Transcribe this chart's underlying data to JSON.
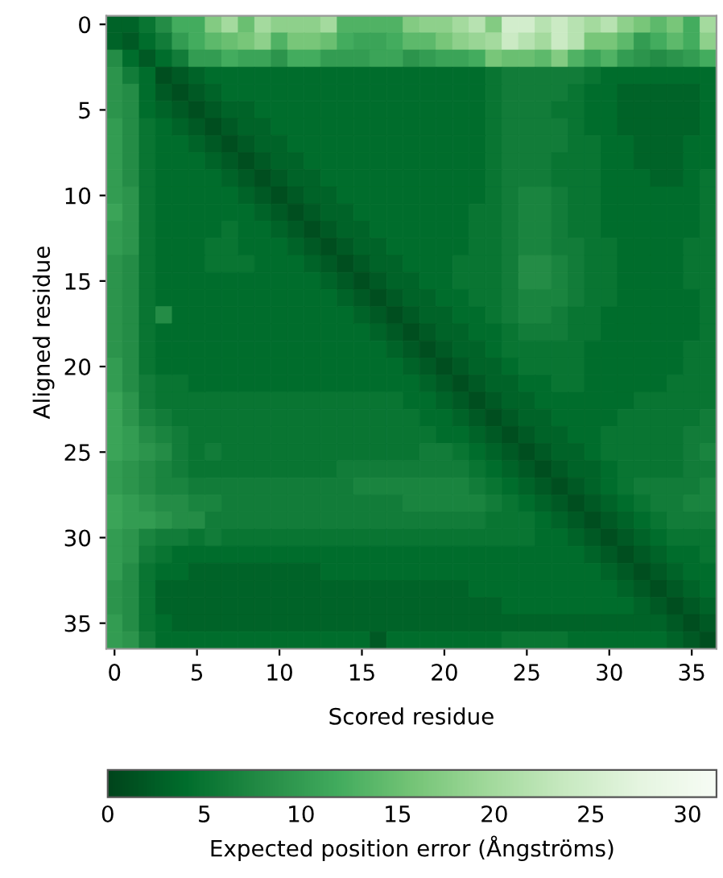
{
  "chart_data": {
    "type": "heatmap",
    "xlabel": "Scored residue",
    "ylabel": "Aligned residue",
    "clabel": "Expected position error (Ångströms)",
    "clim": [
      0,
      31.5
    ],
    "cticks": [
      0,
      5,
      10,
      15,
      20,
      25,
      30
    ],
    "categories": [
      "0",
      null,
      null,
      null,
      null,
      "5",
      null,
      null,
      null,
      null,
      "10",
      null,
      null,
      null,
      null,
      "15",
      null,
      null,
      null,
      null,
      "20",
      null,
      null,
      null,
      null,
      "25",
      null,
      null,
      null,
      null,
      "30",
      null,
      null,
      null,
      null,
      "35",
      null
    ],
    "y_categories": [
      "0",
      null,
      null,
      null,
      null,
      "5",
      null,
      null,
      null,
      null,
      "10",
      null,
      null,
      null,
      null,
      "15",
      null,
      null,
      null,
      null,
      "20",
      null,
      null,
      null,
      null,
      "25",
      null,
      null,
      null,
      null,
      "30",
      null,
      null,
      null,
      null,
      "35",
      null
    ],
    "cells": [
      [
        3,
        3,
        5,
        8,
        12,
        12,
        17,
        20,
        15,
        20,
        18,
        18,
        18,
        20,
        13,
        13,
        13,
        13,
        17,
        18,
        18,
        20,
        22,
        17,
        25,
        25,
        22,
        24,
        22,
        20,
        22,
        18,
        16,
        14,
        16,
        12,
        20
      ],
      [
        3,
        2,
        4,
        6,
        10,
        12,
        14,
        15,
        16,
        18,
        13,
        16,
        16,
        15,
        12,
        11,
        11,
        12,
        14,
        14,
        16,
        18,
        19,
        20,
        24,
        22,
        20,
        24,
        22,
        16,
        16,
        14,
        10,
        12,
        14,
        12,
        18
      ],
      [
        8,
        4,
        2,
        4,
        6,
        10,
        10,
        12,
        11,
        11,
        9,
        12,
        12,
        10,
        10,
        10,
        11,
        11,
        9,
        10,
        11,
        11,
        12,
        16,
        15,
        15,
        14,
        17,
        13,
        11,
        13,
        10,
        9,
        8,
        9,
        10,
        12
      ],
      [
        9,
        6,
        4,
        1,
        2,
        3,
        4,
        4,
        4,
        4,
        4,
        4,
        4,
        4,
        4,
        4,
        4,
        4,
        4,
        4,
        4,
        4,
        4,
        5,
        6,
        6,
        6,
        6,
        6,
        5,
        4,
        4,
        4,
        4,
        4,
        4,
        4
      ],
      [
        9,
        8,
        4,
        2,
        1,
        2,
        3,
        4,
        4,
        4,
        4,
        4,
        4,
        4,
        4,
        4,
        4,
        4,
        4,
        4,
        4,
        4,
        4,
        5,
        6,
        6,
        6,
        6,
        5,
        4,
        4,
        3,
        3,
        3,
        3,
        3,
        4
      ],
      [
        9,
        8,
        4,
        3,
        2,
        1,
        2,
        3,
        3,
        4,
        4,
        4,
        4,
        4,
        4,
        4,
        4,
        4,
        4,
        4,
        4,
        4,
        4,
        5,
        6,
        6,
        6,
        5,
        5,
        4,
        4,
        3,
        3,
        3,
        3,
        3,
        4
      ],
      [
        10,
        8,
        5,
        4,
        3,
        2,
        1,
        2,
        3,
        3,
        4,
        4,
        4,
        4,
        4,
        4,
        4,
        4,
        4,
        4,
        4,
        4,
        4,
        5,
        6,
        6,
        6,
        6,
        5,
        4,
        4,
        3,
        3,
        3,
        3,
        3,
        4
      ],
      [
        10,
        8,
        5,
        4,
        4,
        3,
        2,
        1,
        2,
        3,
        3,
        4,
        4,
        4,
        4,
        4,
        4,
        4,
        4,
        4,
        4,
        4,
        4,
        5,
        6,
        6,
        6,
        6,
        5,
        5,
        4,
        4,
        3,
        3,
        3,
        4,
        4
      ],
      [
        10,
        8,
        5,
        4,
        4,
        4,
        3,
        2,
        1,
        2,
        3,
        3,
        4,
        4,
        4,
        4,
        4,
        4,
        4,
        4,
        4,
        4,
        4,
        5,
        6,
        6,
        6,
        5,
        5,
        5,
        4,
        4,
        3,
        3,
        3,
        4,
        4
      ],
      [
        10,
        8,
        5,
        4,
        4,
        4,
        4,
        3,
        2,
        1,
        2,
        3,
        3,
        4,
        4,
        4,
        4,
        4,
        4,
        4,
        4,
        4,
        4,
        5,
        6,
        6,
        6,
        5,
        5,
        5,
        4,
        4,
        4,
        3,
        3,
        4,
        5
      ],
      [
        10,
        9,
        5,
        4,
        4,
        4,
        4,
        4,
        3,
        2,
        1,
        2,
        3,
        3,
        4,
        4,
        4,
        4,
        4,
        4,
        4,
        4,
        4,
        5,
        6,
        7,
        7,
        6,
        5,
        5,
        4,
        4,
        4,
        4,
        4,
        4,
        5
      ],
      [
        11,
        9,
        5,
        4,
        4,
        4,
        4,
        4,
        4,
        3,
        2,
        1,
        2,
        3,
        3,
        4,
        4,
        4,
        4,
        4,
        4,
        4,
        5,
        5,
        6,
        7,
        7,
        6,
        5,
        5,
        4,
        4,
        4,
        4,
        4,
        4,
        5
      ],
      [
        10,
        9,
        5,
        4,
        4,
        4,
        4,
        5,
        4,
        4,
        3,
        2,
        1,
        2,
        3,
        3,
        4,
        4,
        4,
        4,
        4,
        4,
        5,
        5,
        6,
        7,
        7,
        6,
        5,
        5,
        4,
        4,
        4,
        4,
        4,
        4,
        5
      ],
      [
        10,
        9,
        5,
        4,
        4,
        4,
        5,
        5,
        4,
        4,
        4,
        3,
        2,
        1,
        2,
        3,
        3,
        4,
        4,
        4,
        4,
        4,
        5,
        5,
        6,
        7,
        7,
        6,
        6,
        5,
        5,
        4,
        4,
        4,
        4,
        5,
        5
      ],
      [
        9,
        8,
        5,
        4,
        4,
        4,
        5,
        5,
        5,
        4,
        4,
        4,
        3,
        2,
        1,
        2,
        3,
        3,
        4,
        4,
        4,
        5,
        5,
        5,
        6,
        8,
        8,
        7,
        6,
        5,
        5,
        4,
        4,
        4,
        4,
        5,
        5
      ],
      [
        9,
        8,
        5,
        4,
        4,
        4,
        4,
        4,
        4,
        4,
        4,
        4,
        4,
        3,
        2,
        1,
        2,
        3,
        3,
        4,
        4,
        5,
        5,
        5,
        6,
        8,
        8,
        7,
        6,
        5,
        5,
        4,
        4,
        4,
        4,
        5,
        5
      ],
      [
        9,
        8,
        5,
        4,
        4,
        4,
        4,
        4,
        4,
        4,
        4,
        4,
        4,
        4,
        3,
        2,
        1,
        2,
        3,
        3,
        4,
        4,
        5,
        5,
        6,
        7,
        7,
        7,
        6,
        5,
        5,
        4,
        4,
        4,
        4,
        4,
        5
      ],
      [
        9,
        8,
        5,
        8,
        4,
        4,
        4,
        4,
        4,
        4,
        4,
        4,
        4,
        4,
        4,
        3,
        2,
        1,
        2,
        3,
        3,
        4,
        4,
        5,
        6,
        7,
        7,
        6,
        5,
        5,
        4,
        4,
        4,
        4,
        4,
        4,
        5
      ],
      [
        9,
        8,
        5,
        4,
        4,
        4,
        4,
        4,
        4,
        4,
        4,
        4,
        4,
        4,
        4,
        4,
        3,
        2,
        1,
        2,
        3,
        3,
        4,
        4,
        5,
        6,
        6,
        6,
        5,
        5,
        4,
        4,
        4,
        4,
        4,
        4,
        5
      ],
      [
        9,
        8,
        5,
        4,
        4,
        4,
        4,
        4,
        4,
        4,
        4,
        4,
        4,
        4,
        4,
        4,
        4,
        3,
        2,
        1,
        2,
        3,
        3,
        4,
        5,
        5,
        5,
        5,
        5,
        4,
        4,
        4,
        4,
        4,
        4,
        5,
        5
      ],
      [
        10,
        8,
        5,
        4,
        4,
        4,
        4,
        4,
        4,
        4,
        4,
        4,
        4,
        4,
        4,
        4,
        4,
        4,
        3,
        2,
        1,
        2,
        3,
        3,
        4,
        5,
        5,
        5,
        5,
        4,
        4,
        4,
        4,
        4,
        4,
        5,
        5
      ],
      [
        10,
        8,
        6,
        5,
        5,
        4,
        4,
        4,
        4,
        4,
        4,
        4,
        4,
        4,
        4,
        4,
        4,
        4,
        4,
        3,
        2,
        1,
        2,
        3,
        3,
        4,
        4,
        5,
        5,
        4,
        4,
        4,
        4,
        4,
        5,
        5,
        5
      ],
      [
        11,
        9,
        6,
        5,
        5,
        5,
        5,
        5,
        5,
        5,
        5,
        5,
        5,
        5,
        5,
        5,
        5,
        5,
        4,
        4,
        3,
        2,
        1,
        2,
        3,
        3,
        4,
        4,
        4,
        4,
        4,
        4,
        5,
        5,
        5,
        5,
        5
      ],
      [
        11,
        9,
        7,
        6,
        5,
        5,
        5,
        5,
        5,
        5,
        5,
        5,
        5,
        5,
        5,
        5,
        5,
        5,
        5,
        4,
        4,
        3,
        2,
        1,
        2,
        3,
        3,
        4,
        4,
        4,
        4,
        5,
        5,
        5,
        5,
        5,
        6
      ],
      [
        11,
        10,
        8,
        7,
        6,
        5,
        5,
        5,
        5,
        5,
        5,
        5,
        5,
        5,
        5,
        5,
        5,
        5,
        5,
        5,
        4,
        4,
        3,
        2,
        1,
        2,
        3,
        3,
        4,
        4,
        5,
        5,
        5,
        5,
        5,
        6,
        6
      ],
      [
        11,
        10,
        9,
        8,
        6,
        5,
        6,
        5,
        5,
        5,
        5,
        5,
        5,
        5,
        5,
        5,
        5,
        5,
        5,
        6,
        6,
        5,
        4,
        3,
        2,
        1,
        2,
        3,
        3,
        4,
        5,
        5,
        5,
        5,
        5,
        6,
        7
      ],
      [
        10,
        9,
        8,
        7,
        6,
        5,
        5,
        5,
        5,
        5,
        5,
        5,
        5,
        5,
        6,
        6,
        6,
        6,
        6,
        6,
        6,
        6,
        5,
        4,
        3,
        2,
        1,
        2,
        3,
        3,
        4,
        5,
        5,
        5,
        5,
        6,
        6
      ],
      [
        10,
        9,
        8,
        7,
        7,
        6,
        6,
        6,
        6,
        6,
        6,
        6,
        6,
        6,
        6,
        7,
        7,
        7,
        7,
        7,
        7,
        7,
        6,
        5,
        4,
        3,
        2,
        1,
        2,
        3,
        4,
        5,
        6,
        6,
        6,
        6,
        7
      ],
      [
        11,
        10,
        9,
        8,
        8,
        7,
        7,
        6,
        6,
        6,
        6,
        6,
        6,
        6,
        6,
        6,
        6,
        6,
        7,
        7,
        7,
        7,
        7,
        6,
        5,
        4,
        3,
        2,
        1,
        2,
        3,
        4,
        5,
        6,
        6,
        7,
        7
      ],
      [
        11,
        10,
        10,
        9,
        8,
        8,
        6,
        6,
        6,
        6,
        6,
        6,
        6,
        6,
        6,
        6,
        6,
        6,
        6,
        6,
        6,
        6,
        6,
        5,
        5,
        5,
        4,
        3,
        2,
        1,
        2,
        3,
        4,
        5,
        6,
        6,
        6
      ],
      [
        10,
        9,
        7,
        6,
        6,
        5,
        6,
        5,
        5,
        5,
        5,
        5,
        5,
        5,
        5,
        5,
        5,
        5,
        5,
        5,
        5,
        5,
        5,
        5,
        5,
        5,
        4,
        4,
        3,
        2,
        1,
        2,
        3,
        4,
        5,
        5,
        5
      ],
      [
        10,
        9,
        6,
        5,
        4,
        4,
        4,
        4,
        4,
        4,
        4,
        4,
        4,
        4,
        4,
        4,
        4,
        4,
        4,
        4,
        4,
        4,
        4,
        4,
        4,
        4,
        4,
        4,
        4,
        3,
        2,
        1,
        2,
        3,
        4,
        4,
        5
      ],
      [
        10,
        8,
        5,
        4,
        4,
        3,
        3,
        3,
        3,
        3,
        3,
        3,
        3,
        4,
        4,
        4,
        4,
        4,
        4,
        4,
        4,
        4,
        4,
        4,
        4,
        4,
        4,
        4,
        4,
        4,
        3,
        2,
        1,
        2,
        3,
        4,
        4
      ],
      [
        9,
        8,
        5,
        3,
        3,
        3,
        3,
        3,
        3,
        3,
        3,
        3,
        3,
        3,
        3,
        3,
        3,
        3,
        3,
        3,
        3,
        3,
        4,
        4,
        4,
        4,
        4,
        4,
        4,
        4,
        4,
        3,
        2,
        1,
        2,
        3,
        4
      ],
      [
        9,
        8,
        5,
        3,
        3,
        3,
        3,
        3,
        3,
        3,
        3,
        3,
        3,
        3,
        3,
        3,
        3,
        3,
        3,
        3,
        3,
        3,
        3,
        3,
        4,
        4,
        4,
        4,
        4,
        4,
        4,
        4,
        3,
        2,
        1,
        2,
        3
      ],
      [
        10,
        8,
        5,
        4,
        3,
        3,
        3,
        3,
        3,
        3,
        3,
        3,
        3,
        3,
        3,
        3,
        3,
        3,
        3,
        3,
        3,
        3,
        3,
        3,
        3,
        3,
        3,
        3,
        3,
        3,
        3,
        3,
        3,
        3,
        2,
        1,
        2
      ],
      [
        10,
        9,
        6,
        4,
        4,
        4,
        4,
        4,
        4,
        4,
        4,
        4,
        4,
        4,
        4,
        4,
        2,
        4,
        4,
        4,
        4,
        4,
        4,
        4,
        5,
        5,
        5,
        5,
        4,
        4,
        4,
        4,
        4,
        4,
        3,
        2,
        1
      ]
    ]
  }
}
